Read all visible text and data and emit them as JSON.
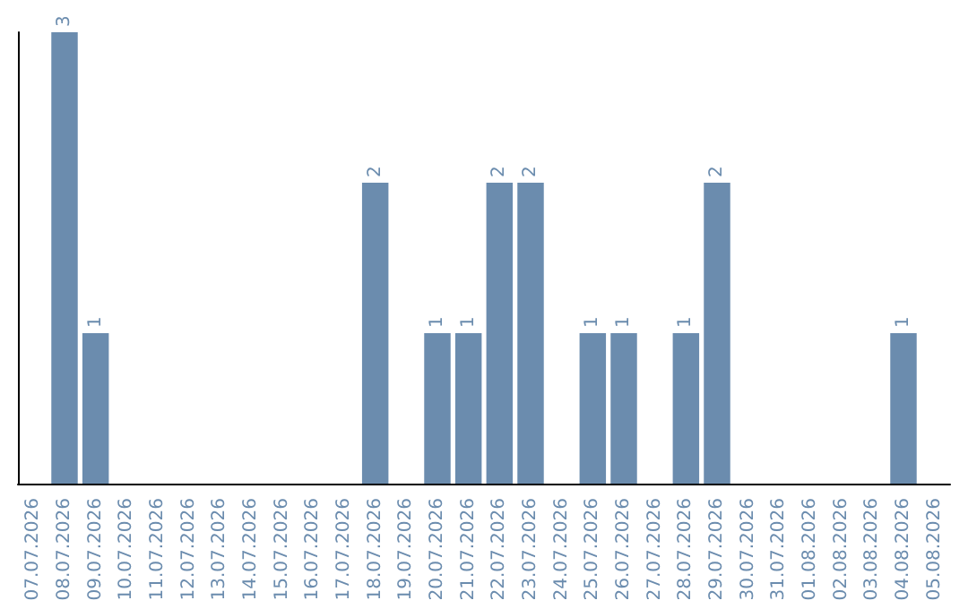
{
  "chart_data": {
    "type": "bar",
    "categories": [
      "07.07.2026",
      "08.07.2026",
      "09.07.2026",
      "10.07.2026",
      "11.07.2026",
      "12.07.2026",
      "13.07.2026",
      "14.07.2026",
      "15.07.2026",
      "16.07.2026",
      "17.07.2026",
      "18.07.2026",
      "19.07.2026",
      "20.07.2026",
      "21.07.2026",
      "22.07.2026",
      "23.07.2026",
      "24.07.2026",
      "25.07.2026",
      "26.07.2026",
      "27.07.2026",
      "28.07.2026",
      "29.07.2026",
      "30.07.2026",
      "31.07.2026",
      "01.08.2026",
      "02.08.2026",
      "03.08.2026",
      "04.08.2026",
      "05.08.2026"
    ],
    "values": [
      0,
      3,
      1,
      0,
      0,
      0,
      0,
      0,
      0,
      0,
      0,
      2,
      0,
      1,
      1,
      2,
      2,
      0,
      1,
      1,
      0,
      1,
      2,
      0,
      0,
      0,
      0,
      0,
      1,
      0
    ],
    "value_labels": [
      null,
      "3",
      "1",
      null,
      null,
      null,
      null,
      null,
      null,
      null,
      null,
      "2",
      null,
      "1",
      "1",
      "2",
      "2",
      null,
      "1",
      "1",
      null,
      "1",
      "2",
      null,
      null,
      null,
      null,
      null,
      "1",
      null
    ],
    "color": "#6b8cae",
    "grid": false,
    "tick_labels": "x"
  }
}
